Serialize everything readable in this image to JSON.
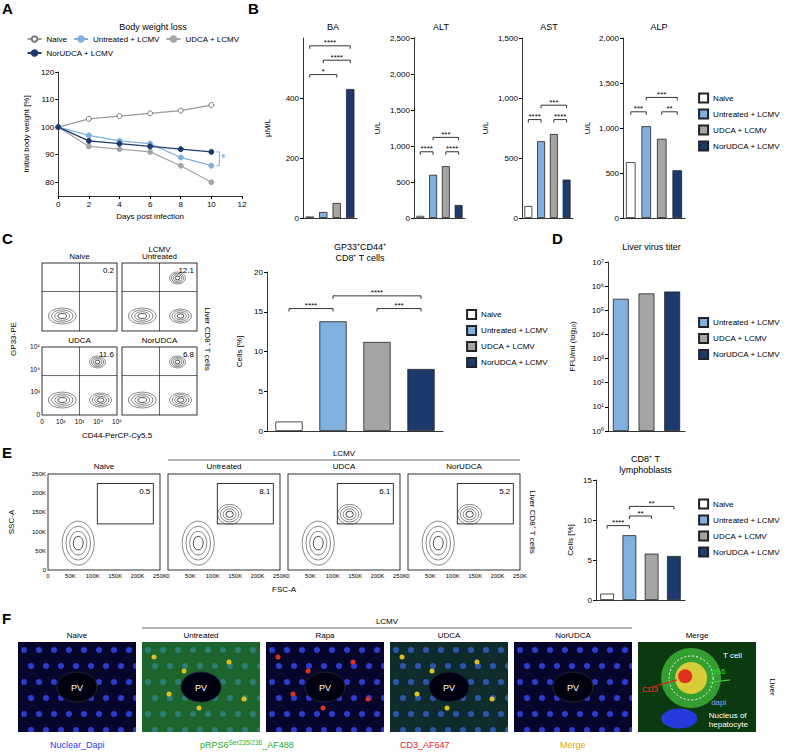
{
  "chart_data": [
    {
      "panel": "A",
      "type": "line",
      "title": "Body weight loss",
      "x_label": "Days post infection",
      "y_label": "Initial body weight [%]",
      "x": [
        0,
        2,
        4,
        6,
        8,
        10
      ],
      "xlim": [
        0,
        12
      ],
      "xticks": [
        0,
        2,
        4,
        6,
        8,
        10,
        12
      ],
      "ylim": [
        75,
        120
      ],
      "yticks": [
        80,
        90,
        100,
        110,
        120
      ],
      "marker": "circle",
      "legend": "top",
      "series": [
        {
          "name": "Naive",
          "color": "#ffffff",
          "values": [
            100,
            103,
            104,
            105,
            106,
            108
          ]
        },
        {
          "name": "Untreated + LCMV",
          "color": "#7fb0e0",
          "values": [
            100,
            97,
            95,
            94,
            89,
            86
          ]
        },
        {
          "name": "UDCA + LCMV",
          "color": "#a5a5a5",
          "values": [
            100,
            93,
            92,
            91,
            86,
            80
          ]
        },
        {
          "name": "NorUDCA + LCMV",
          "color": "#1c3a6e",
          "values": [
            100,
            95,
            94,
            93,
            92,
            91
          ]
        }
      ],
      "significance": [
        {
          "x": 10,
          "pair": [
            1,
            3
          ],
          "label": "*"
        }
      ]
    },
    {
      "panel": "B",
      "type": "bar",
      "title": "BA",
      "y_label": "µM/L",
      "categories": [
        "Naive",
        "Untreated + LCMV",
        "UDCA + LCMV",
        "NorUDCA + LCMV"
      ],
      "values": [
        5,
        20,
        50,
        430
      ],
      "colors": [
        "#ffffff",
        "#7fb0e0",
        "#a5a5a5",
        "#1c3a6e"
      ],
      "ylim": [
        0,
        600
      ],
      "yticks": [
        0,
        200,
        400
      ],
      "tick_labels": "y",
      "significance": [
        {
          "pair": [
            0,
            2
          ],
          "label": "*"
        },
        {
          "pair": [
            1,
            3
          ],
          "label": "****"
        },
        {
          "pair": [
            0,
            3
          ],
          "label": "****"
        }
      ]
    },
    {
      "type": "bar",
      "title": "ALT",
      "y_label": "U/L",
      "categories": [
        "Naive",
        "Untreated + LCMV",
        "UDCA + LCMV",
        "NorUDCA + LCMV"
      ],
      "values": [
        30,
        600,
        720,
        180
      ],
      "colors": [
        "#ffffff",
        "#7fb0e0",
        "#a5a5a5",
        "#1c3a6e"
      ],
      "ylim": [
        0,
        2500
      ],
      "yticks": [
        0,
        500,
        {
          "value": 1000,
          "label": "1,000"
        },
        {
          "value": 1500,
          "label": "1,500"
        },
        {
          "value": 2000,
          "label": "2,000"
        },
        {
          "value": 2500,
          "label": "2,500"
        }
      ],
      "tick_labels": "y",
      "significance": [
        {
          "pair": [
            0,
            1
          ],
          "label": "****"
        },
        {
          "pair": [
            2,
            3
          ],
          "label": "****"
        },
        {
          "pair": [
            1,
            3
          ],
          "label": "***"
        }
      ]
    },
    {
      "type": "bar",
      "title": "AST",
      "y_label": "U/L",
      "categories": [
        "Naive",
        "Untreated + LCMV",
        "UDCA + LCMV",
        "NorUDCA + LCMV"
      ],
      "values": [
        100,
        640,
        700,
        320
      ],
      "colors": [
        "#ffffff",
        "#7fb0e0",
        "#a5a5a5",
        "#1c3a6e"
      ],
      "ylim": [
        0,
        1500
      ],
      "yticks": [
        0,
        500,
        {
          "value": 1000,
          "label": "1,000"
        },
        {
          "value": 1500,
          "label": "1,500"
        }
      ],
      "tick_labels": "y",
      "significance": [
        {
          "pair": [
            0,
            1
          ],
          "label": "****"
        },
        {
          "pair": [
            2,
            3
          ],
          "label": "****"
        },
        {
          "pair": [
            1,
            3
          ],
          "label": "***"
        }
      ]
    },
    {
      "type": "bar",
      "title": "ALP",
      "y_label": "U/L",
      "categories": [
        "Naive",
        "Untreated + LCMV",
        "UDCA + LCMV",
        "NorUDCA + LCMV"
      ],
      "values": [
        620,
        1020,
        880,
        530
      ],
      "colors": [
        "#ffffff",
        "#7fb0e0",
        "#a5a5a5",
        "#1c3a6e"
      ],
      "ylim": [
        0,
        2000
      ],
      "yticks": [
        0,
        500,
        {
          "value": 1000,
          "label": "1,000"
        },
        {
          "value": 1500,
          "label": "1,500"
        },
        {
          "value": 2000,
          "label": "2,000"
        }
      ],
      "tick_labels": "y",
      "legend": "right",
      "significance": [
        {
          "pair": [
            0,
            1
          ],
          "label": "***"
        },
        {
          "pair": [
            2,
            3
          ],
          "label": "**"
        },
        {
          "pair": [
            1,
            3
          ],
          "label": "***"
        }
      ]
    },
    {
      "type": "bar",
      "title": "GP33⁺CD44⁺\nCD8⁺ T cells",
      "y_label": "Cells [%]",
      "categories": [
        "Naive",
        "Untreated + LCMV",
        "UDCA + LCMV",
        "NorUDCA + LCMV"
      ],
      "values": [
        1.2,
        13.8,
        11.2,
        7.8
      ],
      "colors": [
        "#ffffff",
        "#7fb0e0",
        "#a5a5a5",
        "#1c3a6e"
      ],
      "ylim": [
        0,
        20
      ],
      "yticks": [
        0,
        5,
        10,
        15,
        20
      ],
      "tick_labels": "y",
      "legend": "right",
      "significance": [
        {
          "pair": [
            0,
            1
          ],
          "label": "****"
        },
        {
          "pair": [
            2,
            3
          ],
          "label": "***"
        },
        {
          "pair": [
            1,
            3
          ],
          "label": "****"
        }
      ]
    },
    {
      "panel": "D",
      "type": "bar",
      "title": "Liver virus titer",
      "y_label": "FFU/ml (log₁₀)",
      "categories": [
        "Untreated + LCMV",
        "UDCA + LCMV",
        "NorUDCA + LCMV"
      ],
      "values": [
        300000,
        500000,
        600000
      ],
      "colors": [
        "#7fb0e0",
        "#a5a5a5",
        "#1c3a6e"
      ],
      "log": "y",
      "ylim": [
        1,
        10000000
      ],
      "yticks": [
        {
          "value": 1,
          "label": "10⁰"
        },
        {
          "value": 10,
          "label": "10¹"
        },
        {
          "value": 100,
          "label": "10²"
        },
        {
          "value": 1000,
          "label": "10³"
        },
        {
          "value": 10000,
          "label": "10⁴"
        },
        {
          "value": 100000,
          "label": "10⁵"
        },
        {
          "value": 1000000,
          "label": "10⁶"
        },
        {
          "value": 10000000,
          "label": "10⁷"
        }
      ],
      "tick_labels": "y",
      "legend": "right"
    },
    {
      "type": "bar",
      "title": "CD8⁺ T\nlymphoblasts",
      "y_label": "Cells [%]",
      "categories": [
        "Naive",
        "Untreated + LCMV",
        "UDCA + LCMV",
        "NorUDCA + LCMV"
      ],
      "values": [
        0.8,
        8.1,
        5.8,
        5.5
      ],
      "colors": [
        "#ffffff",
        "#7fb0e0",
        "#a5a5a5",
        "#1c3a6e"
      ],
      "ylim": [
        0,
        15
      ],
      "yticks": [
        0,
        5,
        10,
        15
      ],
      "tick_labels": "y",
      "legend": "right",
      "significance": [
        {
          "pair": [
            0,
            1
          ],
          "label": "****"
        },
        {
          "pair": [
            1,
            2
          ],
          "label": "**"
        },
        {
          "pair": [
            1,
            3
          ],
          "label": "**"
        }
      ]
    }
  ],
  "flow_C": {
    "panel": "C",
    "y_label": "GP33-PE",
    "x_label": "CD44-PerCP-Cy5.5",
    "side_label": "Liver CD8⁺ T cells",
    "group_label": "LCMV",
    "x_tick_labels": [
      "0",
      "10²",
      "10³",
      "10⁴",
      "10⁵"
    ],
    "y_tick_labels": [
      "0",
      "10³",
      "10⁴",
      "10⁵"
    ],
    "plots": [
      {
        "label": "Naive",
        "gate": 0.2
      },
      {
        "label": "Untreated",
        "gate": 12.1
      },
      {
        "label": "UDCA",
        "gate": 11.6
      },
      {
        "label": "NorUDCA",
        "gate": 6.8
      }
    ]
  },
  "flow_E": {
    "panel": "E",
    "y_label": "SSC-A",
    "x_label": "FSC-A",
    "side_label": "Liver CD8⁺ T cells",
    "group_label": "LCMV",
    "x_tick_labels": [
      "0",
      "50K",
      "100K",
      "150K",
      "200K",
      "250K"
    ],
    "y_tick_labels": [
      "0",
      "50K",
      "100K",
      "150K",
      "200K",
      "250K"
    ],
    "plots": [
      {
        "label": "Naive",
        "gate": 0.5
      },
      {
        "label": "Untreated",
        "gate": 8.1
      },
      {
        "label": "UDCA",
        "gate": 6.1
      },
      {
        "label": "NorUDCA",
        "gate": 5.2
      }
    ]
  },
  "images_F": {
    "panel": "F",
    "group_label": "LCMV",
    "side_label": "Liver",
    "images": [
      {
        "label": "Naive",
        "region": "PV"
      },
      {
        "label": "Untreated",
        "region": "PV"
      },
      {
        "label": "Rapa",
        "region": "PV"
      },
      {
        "label": "UDCA",
        "region": "PV"
      },
      {
        "label": "NorUDCA",
        "region": "PV"
      },
      {
        "label": "Merge",
        "callouts": [
          "CD3",
          "pS6",
          "T cell",
          "dapi",
          "Nucleus of\nhepatocyte"
        ]
      }
    ],
    "channels": [
      {
        "text": "Nuclear_Dapi",
        "color": "#2a3cff"
      },
      {
        "text": "pRPS6",
        "sup": "Ser235/236",
        "after": "_AF488",
        "color": "#1fae1f"
      },
      {
        "text": "CD3_AF647",
        "color": "#e02020"
      },
      {
        "text": "Merge",
        "color": "#e0a800"
      }
    ]
  }
}
